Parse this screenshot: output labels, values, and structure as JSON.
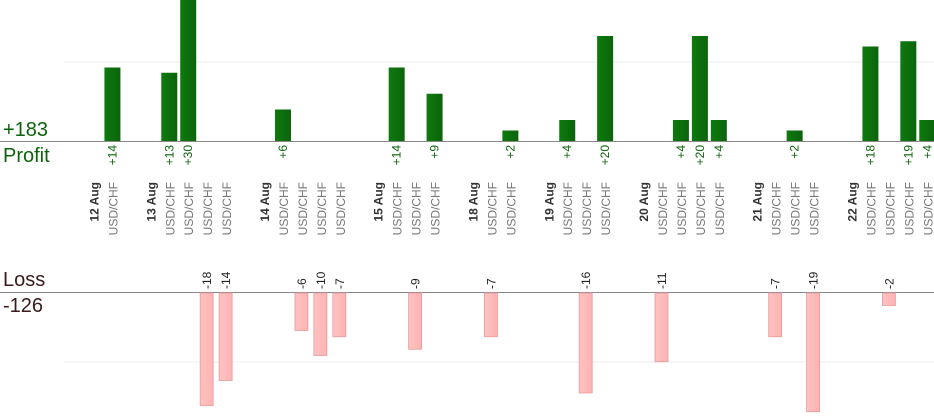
{
  "summary": {
    "profit_total": "+183",
    "profit_label": "Profit",
    "loss_label": "Loss",
    "loss_total": "-126"
  },
  "colors": {
    "profit_bar": "#0b640b",
    "profit_text": "#0b640b",
    "loss_bar": "#ffb3b3",
    "loss_bar_edge": "#e89a9a",
    "loss_text": "#222222",
    "date_text": "#333333",
    "pair_text": "#777777",
    "axis": "#888888",
    "grid": "#ececec"
  },
  "chart_data": {
    "type": "bar",
    "title": "",
    "xlabel": "",
    "ylabel": "",
    "grid": true,
    "ylim_profit": [
      0,
      30
    ],
    "ylim_loss": [
      -20,
      0
    ],
    "x": [
      {
        "kind": "date",
        "label": "12 Aug"
      },
      {
        "kind": "pair",
        "label": "USD/CHF",
        "profit": 14
      },
      {
        "kind": "gap"
      },
      {
        "kind": "date",
        "label": "13 Aug"
      },
      {
        "kind": "pair",
        "label": "USD/CHF",
        "profit": 13
      },
      {
        "kind": "pair",
        "label": "USD/CHF",
        "profit": 30
      },
      {
        "kind": "pair",
        "label": "USD/CHF",
        "loss": -18
      },
      {
        "kind": "pair",
        "label": "USD/CHF",
        "loss": -14
      },
      {
        "kind": "gap"
      },
      {
        "kind": "date",
        "label": "14 Aug"
      },
      {
        "kind": "pair",
        "label": "USD/CHF",
        "profit": 6
      },
      {
        "kind": "pair",
        "label": "USD/CHF",
        "loss": -6
      },
      {
        "kind": "pair",
        "label": "USD/CHF",
        "loss": -10
      },
      {
        "kind": "pair",
        "label": "USD/CHF",
        "loss": -7
      },
      {
        "kind": "gap"
      },
      {
        "kind": "date",
        "label": "15 Aug"
      },
      {
        "kind": "pair",
        "label": "USD/CHF",
        "profit": 14
      },
      {
        "kind": "pair",
        "label": "USD/CHF",
        "loss": -9
      },
      {
        "kind": "pair",
        "label": "USD/CHF",
        "profit": 9
      },
      {
        "kind": "gap"
      },
      {
        "kind": "date",
        "label": "18 Aug"
      },
      {
        "kind": "pair",
        "label": "USD/CHF",
        "loss": -7
      },
      {
        "kind": "pair",
        "label": "USD/CHF",
        "profit": 2
      },
      {
        "kind": "gap"
      },
      {
        "kind": "date",
        "label": "19 Aug"
      },
      {
        "kind": "pair",
        "label": "USD/CHF",
        "profit": 4
      },
      {
        "kind": "pair",
        "label": "USD/CHF",
        "loss": -16
      },
      {
        "kind": "pair",
        "label": "USD/CHF",
        "profit": 20
      },
      {
        "kind": "gap"
      },
      {
        "kind": "date",
        "label": "20 Aug"
      },
      {
        "kind": "pair",
        "label": "USD/CHF",
        "loss": -11
      },
      {
        "kind": "pair",
        "label": "USD/CHF",
        "profit": 4
      },
      {
        "kind": "pair",
        "label": "USD/CHF",
        "profit": 20
      },
      {
        "kind": "pair",
        "label": "USD/CHF",
        "profit": 4
      },
      {
        "kind": "gap"
      },
      {
        "kind": "date",
        "label": "21 Aug"
      },
      {
        "kind": "pair",
        "label": "USD/CHF",
        "loss": -7
      },
      {
        "kind": "pair",
        "label": "USD/CHF",
        "profit": 2
      },
      {
        "kind": "pair",
        "label": "USD/CHF",
        "loss": -19
      },
      {
        "kind": "gap"
      },
      {
        "kind": "date",
        "label": "22 Aug"
      },
      {
        "kind": "pair",
        "label": "USD/CHF",
        "profit": 18
      },
      {
        "kind": "pair",
        "label": "USD/CHF",
        "loss": -2
      },
      {
        "kind": "pair",
        "label": "USD/CHF",
        "profit": 19
      },
      {
        "kind": "pair",
        "label": "USD/CHF",
        "profit": 4
      }
    ]
  }
}
